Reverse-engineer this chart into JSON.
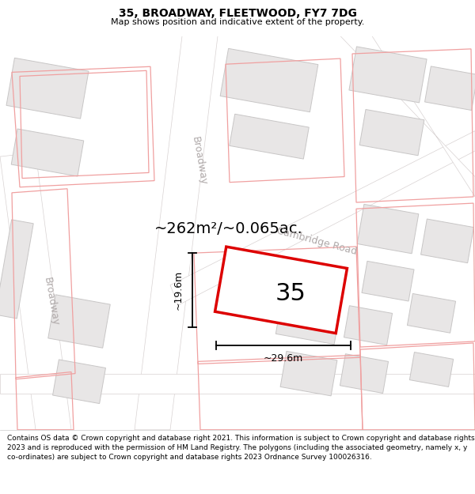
{
  "title": "35, BROADWAY, FLEETWOOD, FY7 7DG",
  "subtitle": "Map shows position and indicative extent of the property.",
  "footer": "Contains OS data © Crown copyright and database right 2021. This information is subject to Crown copyright and database rights 2023 and is reproduced with the permission of HM Land Registry. The polygons (including the associated geometry, namely x, y co-ordinates) are subject to Crown copyright and database rights 2023 Ordnance Survey 100026316.",
  "bg_color": "#ffffff",
  "map_bg": "#f7f4f4",
  "road_white": "#ffffff",
  "building_fill": "#e8e6e6",
  "building_edge": "#c8c6c6",
  "red_outline": "#f0a0a0",
  "highlight_color": "#dd0000",
  "area_text": "~262m²/~0.065ac.",
  "property_number": "35",
  "dim_width": "~29.6m",
  "dim_height": "~19.6m",
  "street_broadway_upper": "Broadway",
  "street_cambridge": "Cambridge Road",
  "street_broadway_left": "Broadway",
  "road_label_color": "#b0aaaa",
  "title_fontsize": 10,
  "subtitle_fontsize": 8,
  "footer_fontsize": 6.5
}
